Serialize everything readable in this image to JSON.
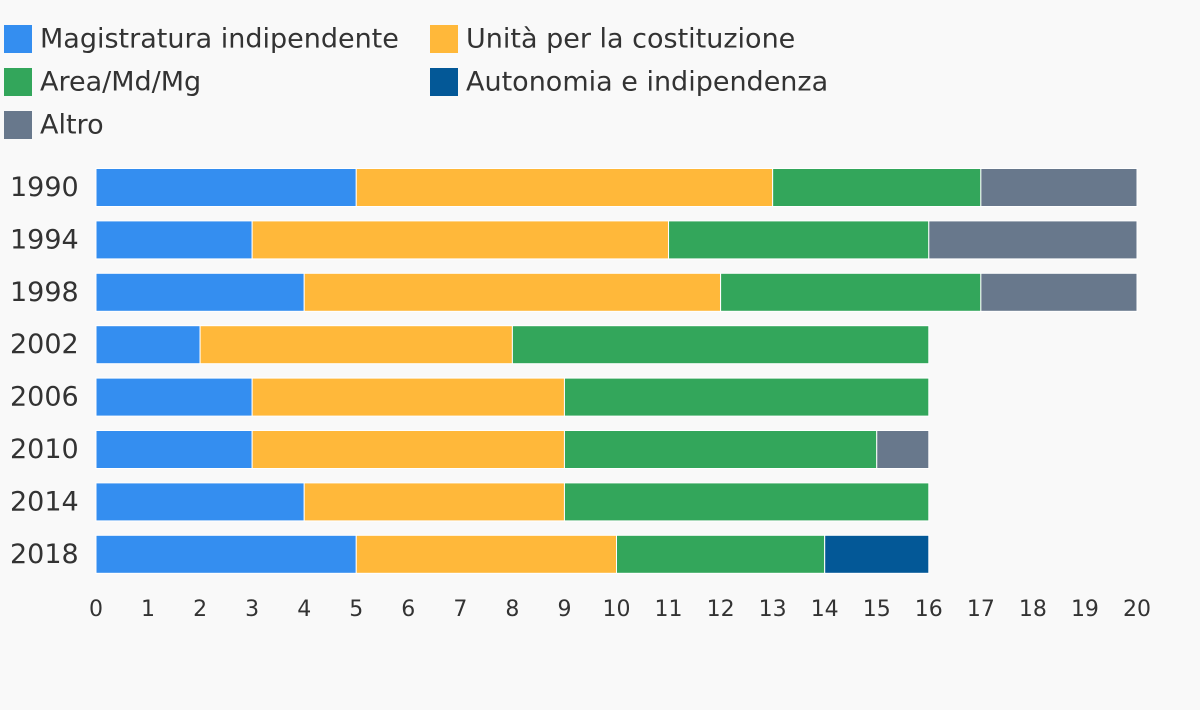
{
  "chart_data": {
    "type": "bar",
    "orientation": "horizontal",
    "stacked": true,
    "title": "",
    "xlabel": "",
    "ylabel": "",
    "xlim": [
      0,
      20
    ],
    "x_ticks": [
      0,
      1,
      2,
      3,
      4,
      5,
      6,
      7,
      8,
      9,
      10,
      11,
      12,
      13,
      14,
      15,
      16,
      17,
      18,
      19,
      20
    ],
    "grid": false,
    "legend_position": "top-left",
    "categories": [
      "1990",
      "1994",
      "1998",
      "2002",
      "2006",
      "2010",
      "2014",
      "2018"
    ],
    "series": [
      {
        "name": "Magistratura indipendente",
        "color": "#348ef0",
        "values": [
          5,
          3,
          4,
          2,
          3,
          3,
          4,
          5
        ]
      },
      {
        "name": "Unità per la costituzione",
        "color": "#ffb83a",
        "values": [
          8,
          8,
          8,
          6,
          6,
          6,
          5,
          5
        ]
      },
      {
        "name": "Area/Md/Mg",
        "color": "#33a65b",
        "values": [
          4,
          5,
          5,
          8,
          7,
          6,
          7,
          4
        ]
      },
      {
        "name": "Autonomia e indipendenza",
        "color": "#035897",
        "values": [
          0,
          0,
          0,
          0,
          0,
          0,
          0,
          2
        ]
      },
      {
        "name": "Altro",
        "color": "#68788c",
        "values": [
          3,
          4,
          3,
          0,
          0,
          1,
          0,
          0
        ]
      }
    ]
  }
}
